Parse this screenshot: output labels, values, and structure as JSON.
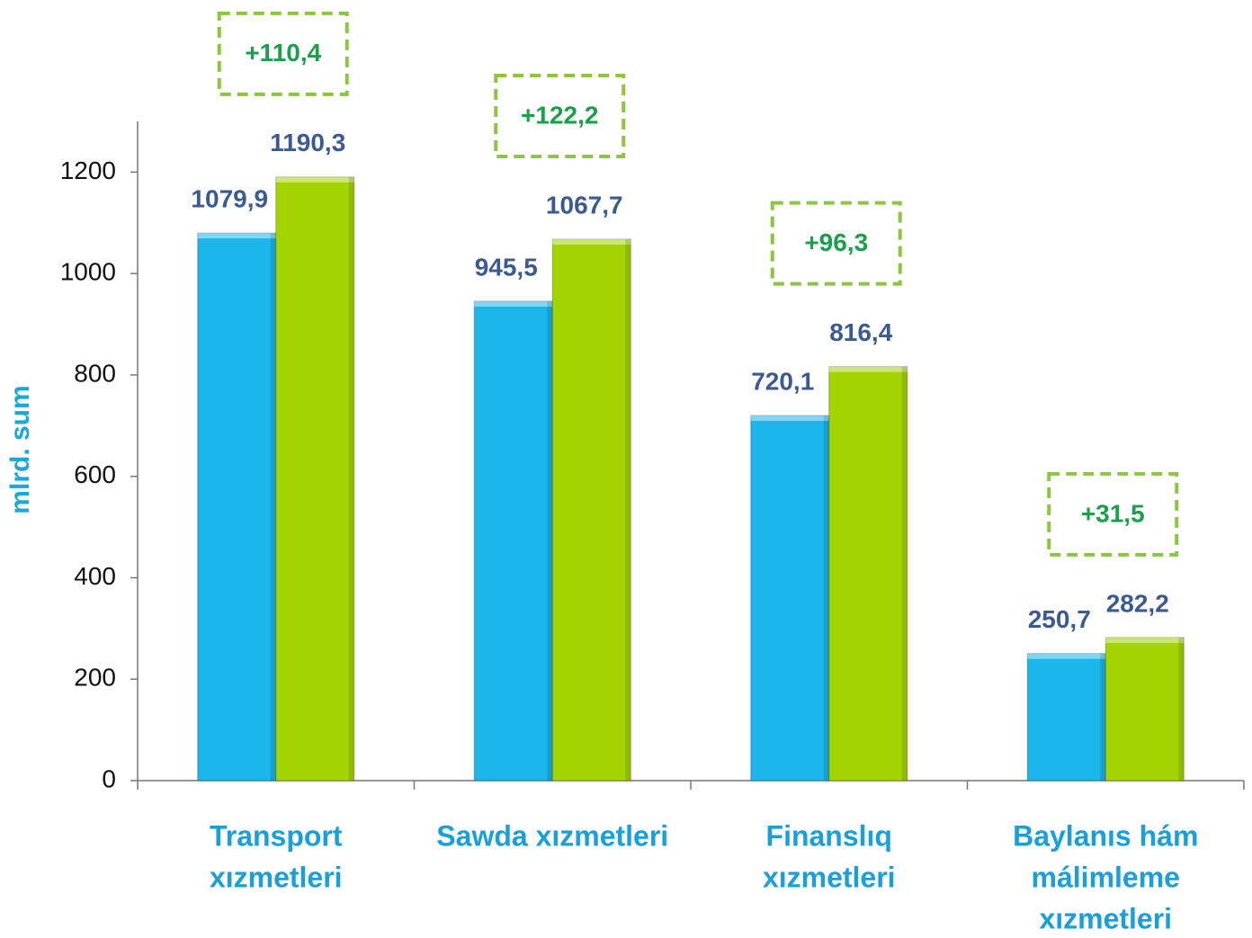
{
  "chart_data": {
    "type": "bar",
    "y_axis_label": "mlrd. sum",
    "categories": [
      [
        "Transport",
        "xızmetleri"
      ],
      [
        "Sawda  xızmetleri"
      ],
      [
        "Finanslıq",
        "xızmetleri"
      ],
      [
        "Baylanıs hám",
        "málimleme",
        "xızmetleri"
      ]
    ],
    "series": [
      {
        "color": "#1bb6ea",
        "values": [
          1079.9,
          945.5,
          720.1,
          250.7
        ],
        "value_labels": [
          "1079,9",
          "945,5",
          "720,1",
          "250,7"
        ]
      },
      {
        "color": "#a2d400",
        "values": [
          1190.3,
          1067.7,
          816.4,
          282.2
        ],
        "value_labels": [
          "1190,3",
          "1067,7",
          "816,4",
          "282,2"
        ]
      }
    ],
    "annotations": [
      "+110,4",
      "+122,2",
      "+96,3",
      "+31,5"
    ],
    "annotation_color": "#8cc63f",
    "ylim": [
      0,
      1300
    ],
    "yticks": [
      0,
      200,
      400,
      600,
      800,
      1000,
      1200
    ],
    "grid": false
  }
}
